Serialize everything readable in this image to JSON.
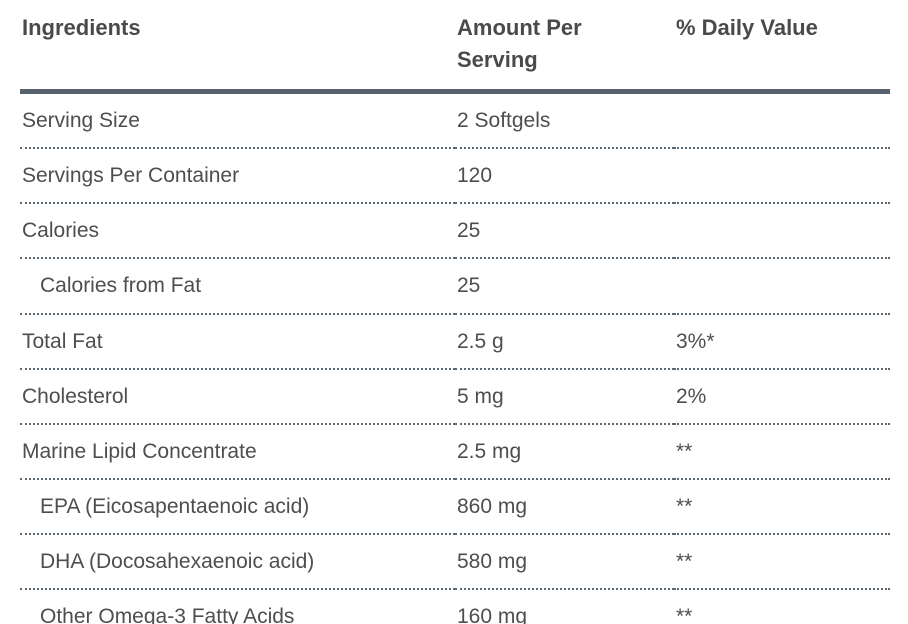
{
  "table": {
    "columns": [
      {
        "label": "Ingredients"
      },
      {
        "label": "Amount Per Serving"
      },
      {
        "label": "% Daily Value"
      }
    ],
    "rows": [
      {
        "ingredient": "Serving Size",
        "amount": "2 Softgels",
        "daily_value": "",
        "indent": false
      },
      {
        "ingredient": "Servings Per Container",
        "amount": "120",
        "daily_value": "",
        "indent": false
      },
      {
        "ingredient": "Calories",
        "amount": "25",
        "daily_value": "",
        "indent": false
      },
      {
        "ingredient": "Calories from Fat",
        "amount": "25",
        "daily_value": "",
        "indent": true
      },
      {
        "ingredient": "Total Fat",
        "amount": "2.5 g",
        "daily_value": "3%*",
        "indent": false
      },
      {
        "ingredient": "Cholesterol",
        "amount": "5 mg",
        "daily_value": "2%",
        "indent": false
      },
      {
        "ingredient": "Marine Lipid Concentrate",
        "amount": "2.5 mg",
        "daily_value": "**",
        "indent": false
      },
      {
        "ingredient": "EPA (Eicosapentaenoic acid)",
        "amount": "860 mg",
        "daily_value": "**",
        "indent": true
      },
      {
        "ingredient": "DHA (Docosahexaenoic acid)",
        "amount": "580 mg",
        "daily_value": "**",
        "indent": true
      },
      {
        "ingredient": "Other Omega-3 Fatty Acids",
        "amount": "160 mg",
        "daily_value": "**",
        "indent": true
      }
    ],
    "colors": {
      "header_text": "#4a4a4a",
      "body_text": "#4c4e50",
      "thick_rule": "#57626e",
      "dotted_rule": "#5b6872",
      "background": "#ffffff"
    }
  }
}
